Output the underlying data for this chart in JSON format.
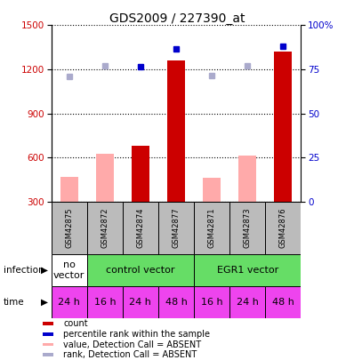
{
  "title": "GDS2009 / 227390_at",
  "samples": [
    "GSM42875",
    "GSM42872",
    "GSM42874",
    "GSM42877",
    "GSM42871",
    "GSM42873",
    "GSM42876"
  ],
  "count_values": [
    null,
    null,
    680,
    1260,
    null,
    null,
    1320
  ],
  "count_absent_values": [
    470,
    625,
    null,
    null,
    460,
    615,
    null
  ],
  "rank_values": [
    null,
    null,
    1215,
    1340,
    null,
    null,
    1360
  ],
  "rank_absent_values": [
    1150,
    1225,
    null,
    null,
    1155,
    1225,
    null
  ],
  "infection_groups": [
    {
      "label": "no\nvector",
      "cols": [
        0
      ],
      "color": "#ffffff"
    },
    {
      "label": "control vector",
      "cols": [
        1,
        2,
        3
      ],
      "color": "#66dd66"
    },
    {
      "label": "EGR1 vector",
      "cols": [
        4,
        5,
        6
      ],
      "color": "#66dd66"
    }
  ],
  "time_labels": [
    "24 h",
    "16 h",
    "24 h",
    "48 h",
    "16 h",
    "24 h",
    "48 h"
  ],
  "time_color": "#ee44ee",
  "ylim_left": [
    300,
    1500
  ],
  "ylim_right": [
    0,
    100
  ],
  "yticks_left": [
    300,
    600,
    900,
    1200,
    1500
  ],
  "yticks_right": [
    0,
    25,
    50,
    75,
    100
  ],
  "bar_width": 0.5,
  "count_color": "#cc0000",
  "count_absent_color": "#ffaaaa",
  "rank_color": "#0000cc",
  "rank_absent_color": "#aaaacc",
  "grid_color": "#000000",
  "label_color_left": "#cc0000",
  "label_color_right": "#0000cc",
  "sample_bg": "#bbbbbb",
  "legend_items": [
    {
      "color": "#cc0000",
      "label": "count"
    },
    {
      "color": "#0000cc",
      "label": "percentile rank within the sample"
    },
    {
      "color": "#ffaaaa",
      "label": "value, Detection Call = ABSENT"
    },
    {
      "color": "#aaaacc",
      "label": "rank, Detection Call = ABSENT"
    }
  ]
}
